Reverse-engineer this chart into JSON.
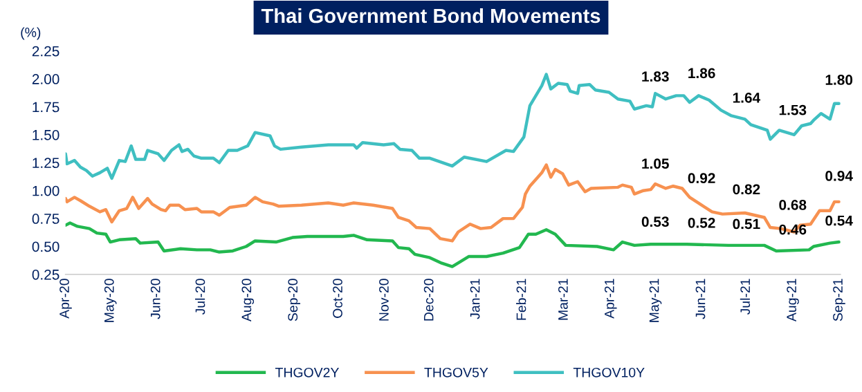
{
  "chart_data": {
    "type": "line",
    "title": "Thai Government Bond Movements",
    "ylabel": "(%)",
    "xlim": [
      "2020-04-01",
      "2021-09-02"
    ],
    "xticks": [
      {
        "value": "2020-04-01",
        "label": "Apr-20"
      },
      {
        "value": "2020-05-01",
        "label": "May-20"
      },
      {
        "value": "2020-06-01",
        "label": "Jun-20"
      },
      {
        "value": "2020-07-01",
        "label": "Jul-20"
      },
      {
        "value": "2020-08-01",
        "label": "Aug-20"
      },
      {
        "value": "2020-09-01",
        "label": "Sep-20"
      },
      {
        "value": "2020-10-01",
        "label": "Oct-20"
      },
      {
        "value": "2020-11-01",
        "label": "Nov-20"
      },
      {
        "value": "2020-12-01",
        "label": "Dec-20"
      },
      {
        "value": "2021-01-01",
        "label": "Jan-21"
      },
      {
        "value": "2021-02-01",
        "label": "Feb-21"
      },
      {
        "value": "2021-03-01",
        "label": "Mar-21"
      },
      {
        "value": "2021-04-01",
        "label": "Apr-21"
      },
      {
        "value": "2021-05-01",
        "label": "May-21"
      },
      {
        "value": "2021-06-01",
        "label": "Jun-21"
      },
      {
        "value": "2021-07-01",
        "label": "Jul-21"
      },
      {
        "value": "2021-08-01",
        "label": "Aug-21"
      },
      {
        "value": "2021-09-01",
        "label": "Sep-21"
      }
    ],
    "ylim": [
      0.25,
      2.25
    ],
    "yticks": [
      {
        "value": 0.25,
        "label": "0.25"
      },
      {
        "value": 0.5,
        "label": "0.50"
      },
      {
        "value": 0.75,
        "label": "0.75"
      },
      {
        "value": 1.0,
        "label": "1.00"
      },
      {
        "value": 1.25,
        "label": "1.25"
      },
      {
        "value": 1.5,
        "label": "1.50"
      },
      {
        "value": 1.75,
        "label": "1.75"
      },
      {
        "value": 2.0,
        "label": "2.00"
      },
      {
        "value": 2.25,
        "label": "2.25"
      }
    ],
    "legend": "bottom",
    "series": [
      {
        "name": "THGOV2Y",
        "color": "#22b84f",
        "x": [
          "2020-04-01",
          "2020-04-04",
          "2020-04-09",
          "2020-04-17",
          "2020-04-22",
          "2020-04-28",
          "2020-05-01",
          "2020-05-07",
          "2020-05-18",
          "2020-05-21",
          "2020-06-02",
          "2020-06-06",
          "2020-06-17",
          "2020-06-28",
          "2020-07-07",
          "2020-07-13",
          "2020-07-22",
          "2020-07-31",
          "2020-08-06",
          "2020-08-20",
          "2020-08-31",
          "2020-09-10",
          "2020-10-04",
          "2020-10-11",
          "2020-10-20",
          "2020-11-06",
          "2020-11-10",
          "2020-11-17",
          "2020-11-21",
          "2020-12-01",
          "2020-12-09",
          "2020-12-16",
          "2020-12-27",
          "2021-01-08",
          "2021-01-19",
          "2021-01-30",
          "2021-02-05",
          "2021-02-10",
          "2021-02-17",
          "2021-02-23",
          "2021-03-02",
          "2021-03-23",
          "2021-04-03",
          "2021-04-09",
          "2021-04-17",
          "2021-04-28",
          "2021-05-22",
          "2021-06-19",
          "2021-07-13",
          "2021-07-21",
          "2021-08-12",
          "2021-08-15",
          "2021-08-26",
          "2021-09-01"
        ],
        "values": [
          0.69,
          0.71,
          0.68,
          0.66,
          0.62,
          0.61,
          0.54,
          0.56,
          0.57,
          0.53,
          0.54,
          0.46,
          0.48,
          0.47,
          0.47,
          0.45,
          0.46,
          0.5,
          0.55,
          0.54,
          0.58,
          0.59,
          0.59,
          0.6,
          0.56,
          0.55,
          0.49,
          0.48,
          0.43,
          0.4,
          0.35,
          0.32,
          0.41,
          0.41,
          0.44,
          0.49,
          0.61,
          0.61,
          0.65,
          0.61,
          0.51,
          0.5,
          0.47,
          0.54,
          0.51,
          0.52,
          0.52,
          0.51,
          0.51,
          0.46,
          0.47,
          0.5,
          0.53,
          0.54
        ]
      },
      {
        "name": "THGOV5Y",
        "color": "#f79150",
        "x": [
          "2020-04-01",
          "2020-04-02",
          "2020-04-07",
          "2020-04-11",
          "2020-04-17",
          "2020-04-24",
          "2020-04-28",
          "2020-05-02",
          "2020-05-07",
          "2020-05-12",
          "2020-05-16",
          "2020-05-20",
          "2020-05-26",
          "2020-05-29",
          "2020-06-04",
          "2020-06-07",
          "2020-06-10",
          "2020-06-16",
          "2020-06-20",
          "2020-06-28",
          "2020-07-01",
          "2020-07-09",
          "2020-07-13",
          "2020-07-20",
          "2020-07-31",
          "2020-08-06",
          "2020-08-11",
          "2020-08-18",
          "2020-08-22",
          "2020-09-06",
          "2020-09-24",
          "2020-10-04",
          "2020-10-11",
          "2020-10-24",
          "2020-11-06",
          "2020-11-10",
          "2020-11-17",
          "2020-11-22",
          "2020-12-01",
          "2020-12-08",
          "2020-12-16",
          "2020-12-20",
          "2020-12-28",
          "2021-01-04",
          "2021-01-11",
          "2021-01-19",
          "2021-01-26",
          "2021-02-01",
          "2021-02-03",
          "2021-02-06",
          "2021-02-14",
          "2021-02-17",
          "2021-02-20",
          "2021-02-23",
          "2021-02-28",
          "2021-03-04",
          "2021-03-10",
          "2021-03-15",
          "2021-03-19",
          "2021-04-06",
          "2021-04-09",
          "2021-04-15",
          "2021-04-17",
          "2021-04-23",
          "2021-04-28",
          "2021-05-01",
          "2021-05-08",
          "2021-05-13",
          "2021-05-19",
          "2021-05-24",
          "2021-06-01",
          "2021-06-08",
          "2021-06-15",
          "2021-06-30",
          "2021-07-13",
          "2021-07-17",
          "2021-07-24",
          "2021-08-02",
          "2021-08-06",
          "2021-08-13",
          "2021-08-19",
          "2021-08-26",
          "2021-08-29",
          "2021-09-01"
        ],
        "values": [
          0.93,
          0.9,
          0.94,
          0.91,
          0.86,
          0.81,
          0.83,
          0.72,
          0.82,
          0.84,
          0.94,
          0.84,
          0.93,
          0.88,
          0.83,
          0.82,
          0.87,
          0.87,
          0.83,
          0.84,
          0.81,
          0.81,
          0.78,
          0.85,
          0.87,
          0.94,
          0.9,
          0.88,
          0.86,
          0.87,
          0.89,
          0.87,
          0.89,
          0.87,
          0.84,
          0.76,
          0.73,
          0.67,
          0.66,
          0.57,
          0.55,
          0.63,
          0.7,
          0.66,
          0.67,
          0.75,
          0.75,
          0.85,
          0.97,
          1.04,
          1.16,
          1.23,
          1.12,
          1.19,
          1.15,
          1.05,
          1.08,
          0.99,
          1.02,
          1.03,
          1.05,
          1.03,
          0.97,
          1.0,
          1.01,
          1.06,
          1.02,
          1.04,
          1.02,
          0.94,
          0.87,
          0.81,
          0.79,
          0.8,
          0.76,
          0.67,
          0.66,
          0.63,
          0.69,
          0.7,
          0.82,
          0.82,
          0.9,
          0.9
        ]
      },
      {
        "name": "THGOV10Y",
        "color": "#3fbfc1",
        "x": [
          "2020-04-01",
          "2020-04-02",
          "2020-04-07",
          "2020-04-11",
          "2020-04-15",
          "2020-04-19",
          "2020-04-24",
          "2020-04-29",
          "2020-05-02",
          "2020-05-07",
          "2020-05-11",
          "2020-05-15",
          "2020-05-18",
          "2020-05-24",
          "2020-05-26",
          "2020-06-02",
          "2020-06-06",
          "2020-06-11",
          "2020-06-16",
          "2020-06-18",
          "2020-06-22",
          "2020-06-26",
          "2020-07-01",
          "2020-07-09",
          "2020-07-13",
          "2020-07-19",
          "2020-07-25",
          "2020-08-01",
          "2020-08-06",
          "2020-08-16",
          "2020-08-19",
          "2020-08-23",
          "2020-09-06",
          "2020-09-24",
          "2020-10-11",
          "2020-10-13",
          "2020-10-17",
          "2020-10-31",
          "2020-11-07",
          "2020-11-11",
          "2020-11-19",
          "2020-11-24",
          "2020-12-01",
          "2020-12-16",
          "2020-12-24",
          "2021-01-08",
          "2021-01-21",
          "2021-01-26",
          "2021-02-02",
          "2021-02-06",
          "2021-02-14",
          "2021-02-17",
          "2021-02-20",
          "2021-02-25",
          "2021-03-03",
          "2021-03-05",
          "2021-03-10",
          "2021-03-11",
          "2021-03-18",
          "2021-03-22",
          "2021-03-31",
          "2021-04-06",
          "2021-04-14",
          "2021-04-17",
          "2021-04-25",
          "2021-04-29",
          "2021-05-01",
          "2021-05-08",
          "2021-05-15",
          "2021-05-20",
          "2021-05-24",
          "2021-05-30",
          "2021-06-06",
          "2021-06-14",
          "2021-06-21",
          "2021-06-30",
          "2021-07-04",
          "2021-07-15",
          "2021-07-17",
          "2021-07-23",
          "2021-08-02",
          "2021-08-07",
          "2021-08-13",
          "2021-08-15",
          "2021-08-20",
          "2021-08-26",
          "2021-08-29",
          "2021-09-01"
        ],
        "values": [
          1.33,
          1.24,
          1.27,
          1.21,
          1.18,
          1.13,
          1.16,
          1.2,
          1.11,
          1.27,
          1.26,
          1.4,
          1.28,
          1.28,
          1.36,
          1.33,
          1.27,
          1.36,
          1.41,
          1.35,
          1.37,
          1.31,
          1.29,
          1.29,
          1.25,
          1.36,
          1.36,
          1.4,
          1.52,
          1.49,
          1.4,
          1.37,
          1.39,
          1.41,
          1.41,
          1.38,
          1.43,
          1.41,
          1.42,
          1.37,
          1.36,
          1.29,
          1.29,
          1.22,
          1.3,
          1.26,
          1.36,
          1.35,
          1.48,
          1.76,
          1.94,
          2.04,
          1.91,
          1.96,
          1.95,
          1.89,
          1.87,
          1.94,
          1.95,
          1.9,
          1.88,
          1.82,
          1.8,
          1.73,
          1.76,
          1.75,
          1.87,
          1.82,
          1.85,
          1.85,
          1.79,
          1.85,
          1.81,
          1.72,
          1.67,
          1.64,
          1.59,
          1.54,
          1.46,
          1.54,
          1.5,
          1.58,
          1.6,
          1.63,
          1.69,
          1.64,
          1.78,
          1.78
        ]
      }
    ],
    "annotations": [
      {
        "text": "1.83",
        "x": "2021-05-01",
        "y": 1.83
      },
      {
        "text": "1.86",
        "x": "2021-06-01",
        "y": 1.86
      },
      {
        "text": "1.64",
        "x": "2021-07-01",
        "y": 1.64
      },
      {
        "text": "1.53",
        "x": "2021-08-01",
        "y": 1.53
      },
      {
        "text": "1.80",
        "x": "2021-09-01",
        "y": 1.8
      },
      {
        "text": "1.05",
        "x": "2021-05-01",
        "y": 1.05
      },
      {
        "text": "0.92",
        "x": "2021-06-01",
        "y": 0.92
      },
      {
        "text": "0.82",
        "x": "2021-07-01",
        "y": 0.82
      },
      {
        "text": "0.68",
        "x": "2021-08-01",
        "y": 0.68
      },
      {
        "text": "0.94",
        "x": "2021-09-01",
        "y": 0.94
      },
      {
        "text": "0.53",
        "x": "2021-05-01",
        "y": 0.53
      },
      {
        "text": "0.52",
        "x": "2021-06-01",
        "y": 0.52
      },
      {
        "text": "0.51",
        "x": "2021-07-01",
        "y": 0.51
      },
      {
        "text": "0.46",
        "x": "2021-08-01",
        "y": 0.46
      },
      {
        "text": "0.54",
        "x": "2021-09-01",
        "y": 0.54
      }
    ]
  }
}
